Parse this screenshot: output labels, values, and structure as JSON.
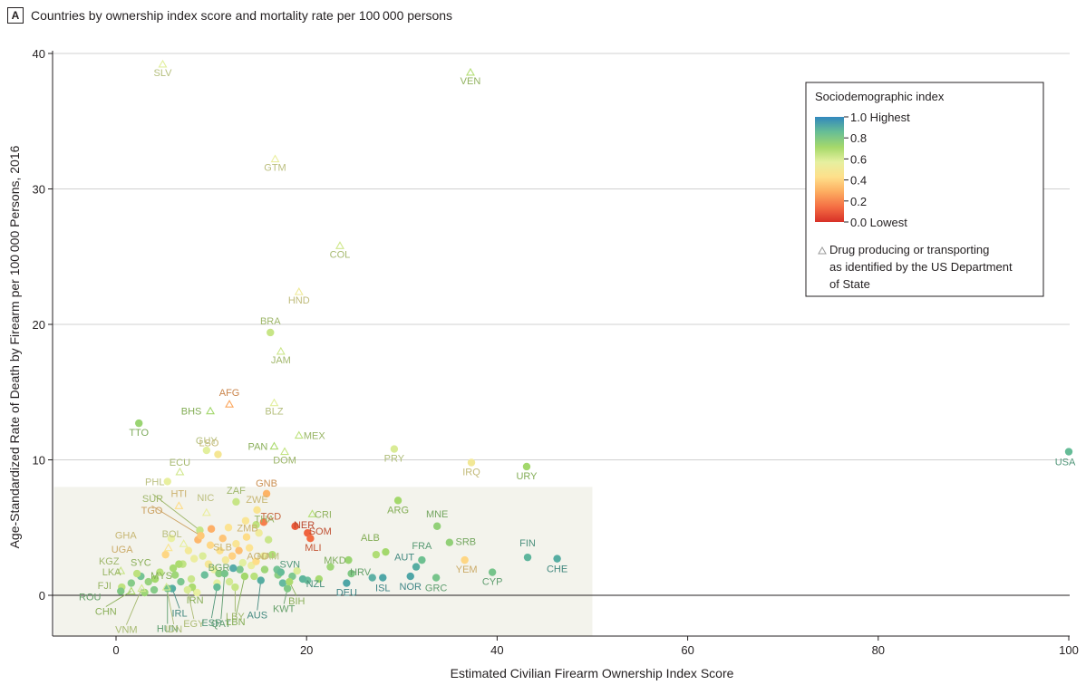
{
  "panel": {
    "letter": "A",
    "title": "Countries by ownership index score and mortality rate per 100 000 persons"
  },
  "legend": {
    "title": "Sociodemographic index",
    "scale_labels": [
      "1.0 Highest",
      "0.8",
      "0.6",
      "0.4",
      "0.2",
      "0.0 Lowest"
    ],
    "scale_values": [
      1.0,
      0.8,
      0.6,
      0.4,
      0.2,
      0.0
    ],
    "marker_text": [
      "Drug producing or transporting",
      "as identified by the US Department",
      "of State"
    ],
    "colors": [
      "#d73027",
      "#f46d43",
      "#fdae61",
      "#fee08b",
      "#e6f0a0",
      "#a6d96a",
      "#66bd96",
      "#3288bd"
    ]
  },
  "chart_data": {
    "type": "scatter",
    "title": "Countries by ownership index score and mortality rate per 100 000 persons",
    "xlabel": "Estimated Civilian Firearm Ownership Index Score",
    "ylabel": "Age-Standardized Rate of Death by Firearm per 100 000 Persons, 2016",
    "xlim": [
      -6.5,
      100
    ],
    "ylim": [
      -3,
      40
    ],
    "x_ticks": [
      0,
      20,
      40,
      60,
      80,
      100
    ],
    "y_ticks": [
      0,
      10,
      20,
      30,
      40
    ],
    "grid": "horizontal",
    "legend_position": "top-right",
    "highlight_region": {
      "x": [
        -6.5,
        50
      ],
      "y": [
        -3,
        8
      ]
    },
    "labeled_points": [
      {
        "label": "SLV",
        "x": 4.9,
        "y": 39.2,
        "sdi": 0.58,
        "drug": true
      },
      {
        "label": "VEN",
        "x": 37.2,
        "y": 38.6,
        "sdi": 0.68,
        "drug": true
      },
      {
        "label": "GTM",
        "x": 16.7,
        "y": 32.2,
        "sdi": 0.55,
        "drug": true
      },
      {
        "label": "COL",
        "x": 23.5,
        "y": 25.8,
        "sdi": 0.62,
        "drug": true
      },
      {
        "label": "HND",
        "x": 19.2,
        "y": 22.4,
        "sdi": 0.52,
        "drug": true
      },
      {
        "label": "BRA",
        "x": 16.2,
        "y": 19.4,
        "sdi": 0.64,
        "drug": false
      },
      {
        "label": "JAM",
        "x": 17.3,
        "y": 18.0,
        "sdi": 0.63,
        "drug": true
      },
      {
        "label": "AFG",
        "x": 11.9,
        "y": 14.1,
        "sdi": 0.27,
        "drug": true
      },
      {
        "label": "BHS",
        "x": 9.9,
        "y": 13.6,
        "sdi": 0.72,
        "drug": true
      },
      {
        "label": "BLZ",
        "x": 16.6,
        "y": 14.2,
        "sdi": 0.58,
        "drug": true
      },
      {
        "label": "TTO",
        "x": 2.4,
        "y": 12.7,
        "sdi": 0.74,
        "drug": false
      },
      {
        "label": "MEX",
        "x": 19.2,
        "y": 11.8,
        "sdi": 0.66,
        "drug": true
      },
      {
        "label": "GUY",
        "x": 9.5,
        "y": 10.7,
        "sdi": 0.58,
        "drug": false
      },
      {
        "label": "PAN",
        "x": 16.6,
        "y": 11.0,
        "sdi": 0.7,
        "drug": true
      },
      {
        "label": "DOM",
        "x": 17.7,
        "y": 10.6,
        "sdi": 0.65,
        "drug": true
      },
      {
        "label": "PRY",
        "x": 29.2,
        "y": 10.8,
        "sdi": 0.6,
        "drug": false
      },
      {
        "label": "IRQ",
        "x": 37.3,
        "y": 9.8,
        "sdi": 0.5,
        "drug": false
      },
      {
        "label": "URY",
        "x": 43.1,
        "y": 9.5,
        "sdi": 0.72,
        "drug": false
      },
      {
        "label": "USA",
        "x": 100,
        "y": 10.6,
        "sdi": 0.86,
        "drug": false
      },
      {
        "label": "ECU",
        "x": 6.7,
        "y": 9.1,
        "sdi": 0.62,
        "drug": true
      },
      {
        "label": "PHL",
        "x": 5.4,
        "y": 8.4,
        "sdi": 0.56,
        "drug": false
      },
      {
        "label": "LSO",
        "x": 10.7,
        "y": 10.4,
        "sdi": 0.48,
        "drug": false
      },
      {
        "label": "GNB",
        "x": 15.8,
        "y": 7.5,
        "sdi": 0.3,
        "drug": false
      },
      {
        "label": "ZAF",
        "x": 12.6,
        "y": 6.9,
        "sdi": 0.64,
        "drug": false
      },
      {
        "label": "NIC",
        "x": 9.5,
        "y": 6.1,
        "sdi": 0.55,
        "drug": true
      },
      {
        "label": "ZWE",
        "x": 14.8,
        "y": 6.3,
        "sdi": 0.46,
        "drug": false
      },
      {
        "label": "HTI",
        "x": 6.6,
        "y": 6.6,
        "sdi": 0.42,
        "drug": true
      },
      {
        "label": "CRI",
        "x": 20.6,
        "y": 6.0,
        "sdi": 0.68,
        "drug": true
      },
      {
        "label": "ARG",
        "x": 29.6,
        "y": 7.0,
        "sdi": 0.72,
        "drug": false
      },
      {
        "label": "THA",
        "x": 14.7,
        "y": 5.2,
        "sdi": 0.66,
        "drug": false
      },
      {
        "label": "TCD",
        "x": 15.5,
        "y": 5.4,
        "sdi": 0.18,
        "drug": false
      },
      {
        "label": "NER",
        "x": 18.8,
        "y": 5.1,
        "sdi": 0.1,
        "drug": false
      },
      {
        "label": "SOM",
        "x": 20.1,
        "y": 4.6,
        "sdi": 0.12,
        "drug": false
      },
      {
        "label": "MLI",
        "x": 20.4,
        "y": 4.2,
        "sdi": 0.14,
        "drug": false
      },
      {
        "label": "ZMB",
        "x": 13.7,
        "y": 4.3,
        "sdi": 0.42,
        "drug": false
      },
      {
        "label": "MNE",
        "x": 33.7,
        "y": 5.1,
        "sdi": 0.76,
        "drug": false
      },
      {
        "label": "SUR",
        "x": 8.8,
        "y": 4.8,
        "sdi": 0.64,
        "drug": false
      },
      {
        "label": "TGO",
        "x": 8.9,
        "y": 4.4,
        "sdi": 0.36,
        "drug": false
      },
      {
        "label": "GHA",
        "x": 5.5,
        "y": 3.5,
        "sdi": 0.46,
        "drug": true
      },
      {
        "label": "UGA",
        "x": 5.2,
        "y": 3.0,
        "sdi": 0.4,
        "drug": false
      },
      {
        "label": "BOL",
        "x": 7.1,
        "y": 3.8,
        "sdi": 0.56,
        "drug": true
      },
      {
        "label": "SRB",
        "x": 35.0,
        "y": 3.9,
        "sdi": 0.76,
        "drug": false
      },
      {
        "label": "NAM",
        "x": 15.5,
        "y": 2.9,
        "sdi": 0.54,
        "drug": false
      },
      {
        "label": "ALB",
        "x": 28.3,
        "y": 3.2,
        "sdi": 0.72,
        "drug": false
      },
      {
        "label": "SLB",
        "x": 10.9,
        "y": 3.3,
        "sdi": 0.44,
        "drug": false
      },
      {
        "label": "SYC",
        "x": 6.6,
        "y": 2.3,
        "sdi": 0.7,
        "drug": false
      },
      {
        "label": "AGO",
        "x": 14.7,
        "y": 2.5,
        "sdi": 0.42,
        "drug": false
      },
      {
        "label": "FRA",
        "x": 32.1,
        "y": 2.6,
        "sdi": 0.84,
        "drug": false
      },
      {
        "label": "YEM",
        "x": 36.6,
        "y": 2.6,
        "sdi": 0.4,
        "drug": false
      },
      {
        "label": "FIN",
        "x": 43.2,
        "y": 2.8,
        "sdi": 0.88,
        "drug": false
      },
      {
        "label": "CHE",
        "x": 46.3,
        "y": 2.7,
        "sdi": 0.9,
        "drug": false
      },
      {
        "label": "KGZ",
        "x": 0.5,
        "y": 1.8,
        "sdi": 0.64,
        "drug": true
      },
      {
        "label": "MKD",
        "x": 24.4,
        "y": 2.6,
        "sdi": 0.74,
        "drug": false
      },
      {
        "label": "SVN",
        "x": 17.3,
        "y": 1.7,
        "sdi": 0.86,
        "drug": false
      },
      {
        "label": "LKA",
        "x": 2.2,
        "y": 1.6,
        "sdi": 0.66,
        "drug": false
      },
      {
        "label": "MYS",
        "x": 4.1,
        "y": 1.2,
        "sdi": 0.72,
        "drug": false
      },
      {
        "label": "AUT",
        "x": 31.5,
        "y": 2.1,
        "sdi": 0.9,
        "drug": false
      },
      {
        "label": "HRV",
        "x": 24.7,
        "y": 1.6,
        "sdi": 0.8,
        "drug": false
      },
      {
        "label": "CYP",
        "x": 39.5,
        "y": 1.7,
        "sdi": 0.82,
        "drug": false
      },
      {
        "label": "FJI",
        "x": 0.6,
        "y": 0.6,
        "sdi": 0.66,
        "drug": false
      },
      {
        "label": "ROU",
        "x": 0.5,
        "y": 0.3,
        "sdi": 0.8,
        "drug": false
      },
      {
        "label": "NOR",
        "x": 30.9,
        "y": 1.4,
        "sdi": 0.92,
        "drug": false
      },
      {
        "label": "ISL",
        "x": 28.0,
        "y": 1.3,
        "sdi": 0.92,
        "drug": false
      },
      {
        "label": "GRC",
        "x": 33.6,
        "y": 1.3,
        "sdi": 0.82,
        "drug": false
      },
      {
        "label": "BGR",
        "x": 10.8,
        "y": 1.6,
        "sdi": 0.78,
        "drug": false
      },
      {
        "label": "NZL",
        "x": 19.6,
        "y": 1.2,
        "sdi": 0.88,
        "drug": false
      },
      {
        "label": "DEU",
        "x": 24.2,
        "y": 0.9,
        "sdi": 0.92,
        "drug": false
      },
      {
        "label": "KWT",
        "x": 18.0,
        "y": 0.5,
        "sdi": 0.8,
        "drug": false
      },
      {
        "label": "BIH",
        "x": 18.2,
        "y": 1.0,
        "sdi": 0.7,
        "drug": false
      },
      {
        "label": "CHN",
        "x": 1.6,
        "y": 0.3,
        "sdi": 0.7,
        "drug": true
      },
      {
        "label": "IRL",
        "x": 5.9,
        "y": 0.5,
        "sdi": 0.9,
        "drug": false
      },
      {
        "label": "IRN",
        "x": 8.0,
        "y": 0.6,
        "sdi": 0.7,
        "drug": false
      },
      {
        "label": "HUN",
        "x": 5.4,
        "y": 0.5,
        "sdi": 0.82,
        "drug": false
      },
      {
        "label": "EGY",
        "x": 7.5,
        "y": 0.4,
        "sdi": 0.6,
        "drug": false
      },
      {
        "label": "ESP",
        "x": 10.6,
        "y": 0.6,
        "sdi": 0.86,
        "drug": false
      },
      {
        "label": "LBY",
        "x": 12.5,
        "y": 0.6,
        "sdi": 0.64,
        "drug": false
      },
      {
        "label": "AUS",
        "x": 15.2,
        "y": 1.1,
        "sdi": 0.9,
        "drug": false
      },
      {
        "label": "VNM",
        "x": 2.7,
        "y": 0.5,
        "sdi": 0.62,
        "drug": true
      },
      {
        "label": "IDN",
        "x": 5.3,
        "y": 0.6,
        "sdi": 0.6,
        "drug": true
      },
      {
        "label": "QAT",
        "x": 11.4,
        "y": 1.6,
        "sdi": 0.82,
        "drug": false
      },
      {
        "label": "LBN",
        "x": 13.5,
        "y": 1.4,
        "sdi": 0.72,
        "drug": false
      }
    ],
    "other_points": [
      {
        "x": 6.0,
        "y": 2.0,
        "sdi": 0.72
      },
      {
        "x": 7.0,
        "y": 2.3,
        "sdi": 0.66
      },
      {
        "x": 8.2,
        "y": 2.7,
        "sdi": 0.54
      },
      {
        "x": 9.1,
        "y": 2.9,
        "sdi": 0.6
      },
      {
        "x": 9.7,
        "y": 2.3,
        "sdi": 0.48
      },
      {
        "x": 10.3,
        "y": 1.9,
        "sdi": 0.56
      },
      {
        "x": 11.5,
        "y": 2.6,
        "sdi": 0.5
      },
      {
        "x": 12.2,
        "y": 2.9,
        "sdi": 0.38
      },
      {
        "x": 12.6,
        "y": 3.8,
        "sdi": 0.46
      },
      {
        "x": 13.3,
        "y": 2.4,
        "sdi": 0.58
      },
      {
        "x": 14.0,
        "y": 3.5,
        "sdi": 0.44
      },
      {
        "x": 15.0,
        "y": 4.6,
        "sdi": 0.52
      },
      {
        "x": 16.0,
        "y": 4.1,
        "sdi": 0.64
      },
      {
        "x": 16.4,
        "y": 3.0,
        "sdi": 0.7
      },
      {
        "x": 17.0,
        "y": 1.5,
        "sdi": 0.78
      },
      {
        "x": 8.6,
        "y": 4.1,
        "sdi": 0.3
      },
      {
        "x": 10.0,
        "y": 4.9,
        "sdi": 0.28
      },
      {
        "x": 11.2,
        "y": 4.2,
        "sdi": 0.34
      },
      {
        "x": 11.8,
        "y": 5.0,
        "sdi": 0.44
      },
      {
        "x": 12.9,
        "y": 3.3,
        "sdi": 0.32
      },
      {
        "x": 7.6,
        "y": 3.3,
        "sdi": 0.5
      },
      {
        "x": 6.2,
        "y": 1.5,
        "sdi": 0.74
      },
      {
        "x": 4.6,
        "y": 1.7,
        "sdi": 0.68
      },
      {
        "x": 3.4,
        "y": 1.0,
        "sdi": 0.76
      },
      {
        "x": 2.6,
        "y": 1.4,
        "sdi": 0.84
      },
      {
        "x": 1.6,
        "y": 0.9,
        "sdi": 0.8
      },
      {
        "x": 9.3,
        "y": 1.5,
        "sdi": 0.86
      },
      {
        "x": 10.6,
        "y": 0.9,
        "sdi": 0.58
      },
      {
        "x": 11.9,
        "y": 1.0,
        "sdi": 0.62
      },
      {
        "x": 13.0,
        "y": 1.9,
        "sdi": 0.82
      },
      {
        "x": 14.5,
        "y": 1.4,
        "sdi": 0.68
      },
      {
        "x": 15.6,
        "y": 1.9,
        "sdi": 0.74
      },
      {
        "x": 16.9,
        "y": 1.9,
        "sdi": 0.84
      },
      {
        "x": 18.5,
        "y": 1.4,
        "sdi": 0.82
      },
      {
        "x": 20.1,
        "y": 1.1,
        "sdi": 0.86
      },
      {
        "x": 21.3,
        "y": 1.2,
        "sdi": 0.72
      },
      {
        "x": 22.5,
        "y": 2.1,
        "sdi": 0.74
      },
      {
        "x": 26.9,
        "y": 1.3,
        "sdi": 0.9
      },
      {
        "x": 27.3,
        "y": 3.0,
        "sdi": 0.7
      },
      {
        "x": 5.8,
        "y": 4.2,
        "sdi": 0.56
      },
      {
        "x": 7.9,
        "y": 1.2,
        "sdi": 0.64
      },
      {
        "x": 8.5,
        "y": 0.2,
        "sdi": 0.56
      },
      {
        "x": 3.0,
        "y": 0.2,
        "sdi": 0.74
      },
      {
        "x": 4.0,
        "y": 0.4,
        "sdi": 0.8
      },
      {
        "x": 12.3,
        "y": 2.0,
        "sdi": 0.92
      },
      {
        "x": 14.2,
        "y": 2.2,
        "sdi": 0.54
      },
      {
        "x": 17.5,
        "y": 0.9,
        "sdi": 0.88
      },
      {
        "x": 19.0,
        "y": 1.8,
        "sdi": 0.6
      },
      {
        "x": 6.8,
        "y": 1.0,
        "sdi": 0.82
      },
      {
        "x": 9.9,
        "y": 3.7,
        "sdi": 0.4
      },
      {
        "x": 13.6,
        "y": 5.5,
        "sdi": 0.46
      }
    ]
  }
}
